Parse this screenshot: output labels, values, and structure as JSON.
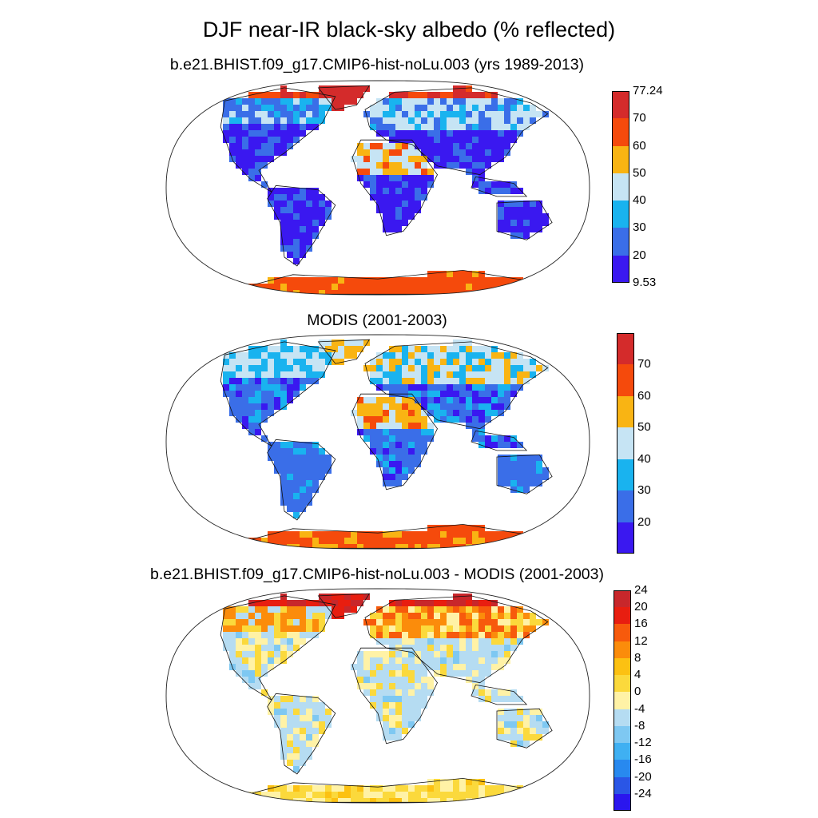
{
  "title": "DJF near-IR black-sky albedo (% reflected)",
  "panels": [
    {
      "title": "b.e21.BHIST.f09_g17.CMIP6-hist-noLu.003 (yrs 1989-2013)",
      "scheme": "abs",
      "colorbar": {
        "colors": [
          "#3a18f0",
          "#3a6ee8",
          "#19b3ef",
          "#c6e4f4",
          "#f9b413",
          "#f54a0c",
          "#d42b2b"
        ],
        "labels": [
          "9.53",
          "20",
          "30",
          "40",
          "50",
          "60",
          "70",
          "77.24"
        ]
      }
    },
    {
      "title": "MODIS (2001-2003)",
      "scheme": "modis",
      "colorbar": {
        "colors": [
          "#3a18f0",
          "#3a6ee8",
          "#19b3ef",
          "#c6e4f4",
          "#f9b413",
          "#f54a0c",
          "#d42b2b"
        ],
        "labels": [
          "",
          "20",
          "30",
          "40",
          "50",
          "60",
          "70",
          ""
        ]
      }
    },
    {
      "title": "b.e21.BHIST.f09_g17.CMIP6-hist-noLu.003 - MODIS (2001-2003)",
      "scheme": "diff",
      "colorbar": {
        "colors": [
          "#2a16ee",
          "#2a56e6",
          "#2889ef",
          "#3fb0f2",
          "#7ec8f2",
          "#b5dcf2",
          "#fff2a6",
          "#fbd93c",
          "#fcc112",
          "#fb8c0b",
          "#f75a0c",
          "#e81e10",
          "#c8272b"
        ],
        "labels": [
          "",
          "-24",
          "-20",
          "-16",
          "-12",
          "-8",
          "-4",
          "0",
          "4",
          "8",
          "12",
          "16",
          "20",
          "24",
          ""
        ]
      }
    }
  ]
}
